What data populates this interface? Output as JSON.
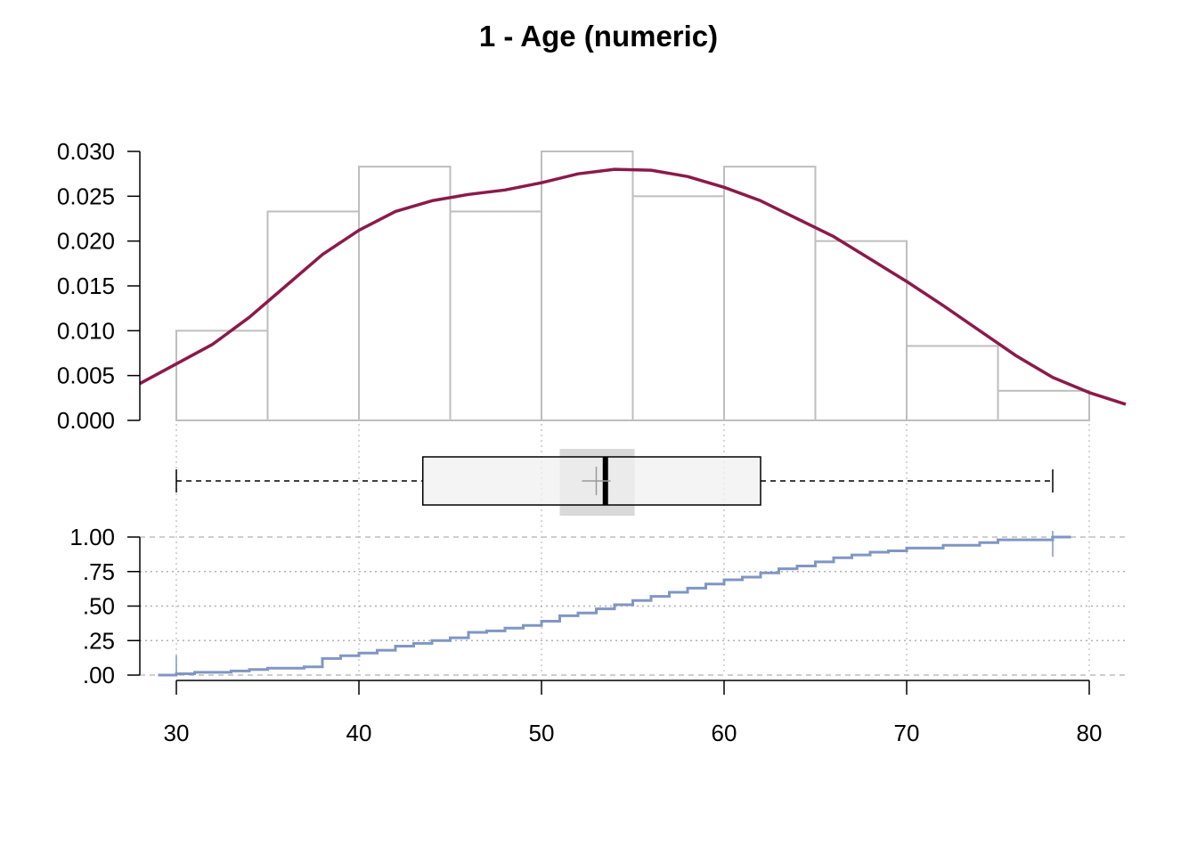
{
  "chart_data": {
    "title": "1 - Age (numeric)",
    "type": "histogram+density+boxplot+ecdf",
    "x_axis": {
      "ticks": [
        30,
        40,
        50,
        60,
        70,
        80
      ],
      "tick_labels": [
        "30",
        "40",
        "50",
        "60",
        "70",
        "80"
      ],
      "xlim": [
        28,
        82
      ]
    },
    "histogram": {
      "type": "bar",
      "bin_width": 5,
      "bin_edges": [
        30,
        35,
        40,
        45,
        50,
        55,
        60,
        65,
        70,
        75,
        80
      ],
      "density": [
        0.01,
        0.0233,
        0.0283,
        0.0233,
        0.03,
        0.025,
        0.0283,
        0.02,
        0.0083,
        0.0033
      ],
      "ylim": [
        0,
        0.03
      ],
      "y_ticks": [
        0.0,
        0.005,
        0.01,
        0.015,
        0.02,
        0.025,
        0.03
      ],
      "y_tick_labels": [
        "0.000",
        "0.005",
        "0.010",
        "0.015",
        "0.020",
        "0.025",
        "0.030"
      ],
      "bar_color": "#bebebe"
    },
    "density_curve": {
      "type": "line",
      "color": "#8b1a4a",
      "x": [
        28,
        30,
        32,
        34,
        36,
        38,
        40,
        42,
        44,
        46,
        48,
        50,
        52,
        54,
        56,
        58,
        60,
        62,
        64,
        66,
        68,
        70,
        72,
        74,
        76,
        78,
        80,
        82
      ],
      "y": [
        0.0041,
        0.0063,
        0.0085,
        0.0115,
        0.015,
        0.0185,
        0.0212,
        0.0233,
        0.0245,
        0.0252,
        0.0257,
        0.0265,
        0.0275,
        0.028,
        0.0279,
        0.0272,
        0.026,
        0.0245,
        0.0225,
        0.0205,
        0.018,
        0.0155,
        0.0128,
        0.01,
        0.0072,
        0.0048,
        0.0031,
        0.0018
      ]
    },
    "boxplot": {
      "min": 30,
      "q1": 43.5,
      "median": 53.5,
      "mean": 53,
      "q3": 62,
      "max": 78,
      "notch_low": 51,
      "notch_high": 55.1,
      "box_fill": "#f0f0f0",
      "notch_fill": "#d9d9d9"
    },
    "ecdf": {
      "type": "line",
      "color": "#8096c4",
      "steps": [
        [
          29,
          0.0
        ],
        [
          30,
          0.01
        ],
        [
          31,
          0.02
        ],
        [
          33,
          0.03
        ],
        [
          34,
          0.04
        ],
        [
          35,
          0.05
        ],
        [
          37,
          0.06
        ],
        [
          38,
          0.12
        ],
        [
          39,
          0.14
        ],
        [
          40,
          0.16
        ],
        [
          41,
          0.18
        ],
        [
          42,
          0.21
        ],
        [
          43,
          0.23
        ],
        [
          44,
          0.25
        ],
        [
          45,
          0.27
        ],
        [
          46,
          0.31
        ],
        [
          47,
          0.32
        ],
        [
          48,
          0.34
        ],
        [
          49,
          0.36
        ],
        [
          50,
          0.39
        ],
        [
          51,
          0.43
        ],
        [
          52,
          0.45
        ],
        [
          53,
          0.48
        ],
        [
          54,
          0.51
        ],
        [
          55,
          0.54
        ],
        [
          56,
          0.57
        ],
        [
          57,
          0.6
        ],
        [
          58,
          0.63
        ],
        [
          59,
          0.66
        ],
        [
          60,
          0.69
        ],
        [
          61,
          0.71
        ],
        [
          62,
          0.74
        ],
        [
          63,
          0.77
        ],
        [
          64,
          0.79
        ],
        [
          65,
          0.82
        ],
        [
          66,
          0.85
        ],
        [
          67,
          0.87
        ],
        [
          68,
          0.89
        ],
        [
          69,
          0.9
        ],
        [
          70,
          0.92
        ],
        [
          72,
          0.94
        ],
        [
          74,
          0.96
        ],
        [
          75,
          0.98
        ],
        [
          78,
          1.0
        ],
        [
          79,
          1.0
        ]
      ],
      "ylim": [
        0,
        1
      ],
      "y_ticks": [
        0,
        0.25,
        0.5,
        0.75,
        1
      ],
      "y_tick_labels": [
        ".00",
        ".25",
        ".50",
        ".75",
        "1.00"
      ]
    }
  }
}
